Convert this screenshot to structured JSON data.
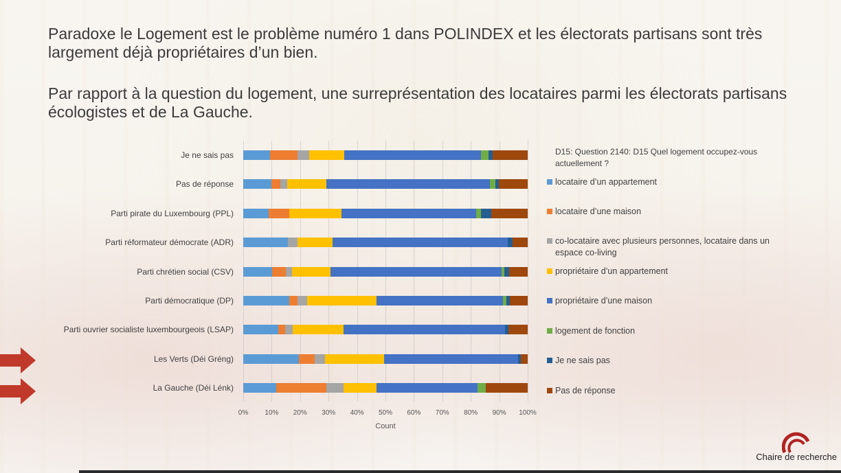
{
  "slide": {
    "title1": "Paradoxe le Logement est le problème numéro 1 dans POLINDEX et les électorats partisans sont très largement déjà propriétaires d’un bien.",
    "title2": "Par rapport à la question du logement, une surreprésentation des locataires parmi les électorats partisans écologistes et de La Gauche.",
    "logo_text": "Chaire de recherche"
  },
  "chart_data": {
    "type": "bar",
    "orientation": "horizontal",
    "stacked": "percent",
    "question": "D15: Question 2140: D15 Quel logement occupez-vous actuellement ?",
    "xlabel": "Count",
    "xlim": [
      0,
      100
    ],
    "ticks": [
      "0%",
      "10%",
      "20%",
      "30%",
      "40%",
      "50%",
      "60%",
      "70%",
      "80%",
      "90%",
      "100%"
    ],
    "legend_position": "right",
    "categories": [
      "Je ne sais pas",
      "Pas de réponse",
      "Parti pirate du Luxembourg (PPL)",
      "Parti réformateur démocrate (ADR)",
      "Parti chrétien social (CSV)",
      "Parti démocratique (DP)",
      "Parti ouvrier socialiste luxembourgeois (LSAP)",
      "Les Verts (Déi Gréng)",
      "La Gauche (Déi Lénk)"
    ],
    "highlighted": [
      "Les Verts (Déi Gréng)",
      "La Gauche (Déi Lénk)"
    ],
    "series": [
      {
        "name": "locataire d’un appartement",
        "color": "#5b9bd5",
        "values": [
          9.5,
          9.9,
          8.9,
          15.6,
          10.2,
          16.1,
          12.2,
          19.5,
          11.6
        ]
      },
      {
        "name": "locataire d’une maison",
        "color": "#ed7d31",
        "values": [
          9.6,
          3.1,
          7.3,
          0,
          4.7,
          3.1,
          2.5,
          5.7,
          17.6
        ]
      },
      {
        "name": "co-locataire avec plusieurs personnes, locataire dans un espace co-living",
        "color": "#a5a5a5",
        "values": [
          4.1,
          2.4,
          0,
          3.5,
          2.2,
          3.2,
          2.8,
          3.5,
          6.0
        ]
      },
      {
        "name": "propriétaire d’un appartement",
        "color": "#ffc000",
        "values": [
          12.4,
          13.8,
          18.2,
          12.4,
          13.5,
          24.5,
          17.7,
          20.8,
          11.7
        ]
      },
      {
        "name": "propriétaire d’une maison",
        "color": "#4472c4",
        "values": [
          47.9,
          57.5,
          47.3,
          61.5,
          60.2,
          44.5,
          56.9,
          47.1,
          35.3
        ]
      },
      {
        "name": "logement de fonction",
        "color": "#70ad47",
        "values": [
          2.8,
          2.0,
          1.9,
          0,
          1.0,
          1.2,
          0,
          0,
          3.1
        ]
      },
      {
        "name": "Je ne sais pas",
        "color": "#255e91",
        "values": [
          1.4,
          1.2,
          3.5,
          1.8,
          1.7,
          1.3,
          1.2,
          1.1,
          0
        ]
      },
      {
        "name": "Pas de réponse",
        "color": "#9e480e",
        "values": [
          12.3,
          10.1,
          12.8,
          5.2,
          6.5,
          6.2,
          6.7,
          2.3,
          14.6
        ]
      }
    ]
  }
}
